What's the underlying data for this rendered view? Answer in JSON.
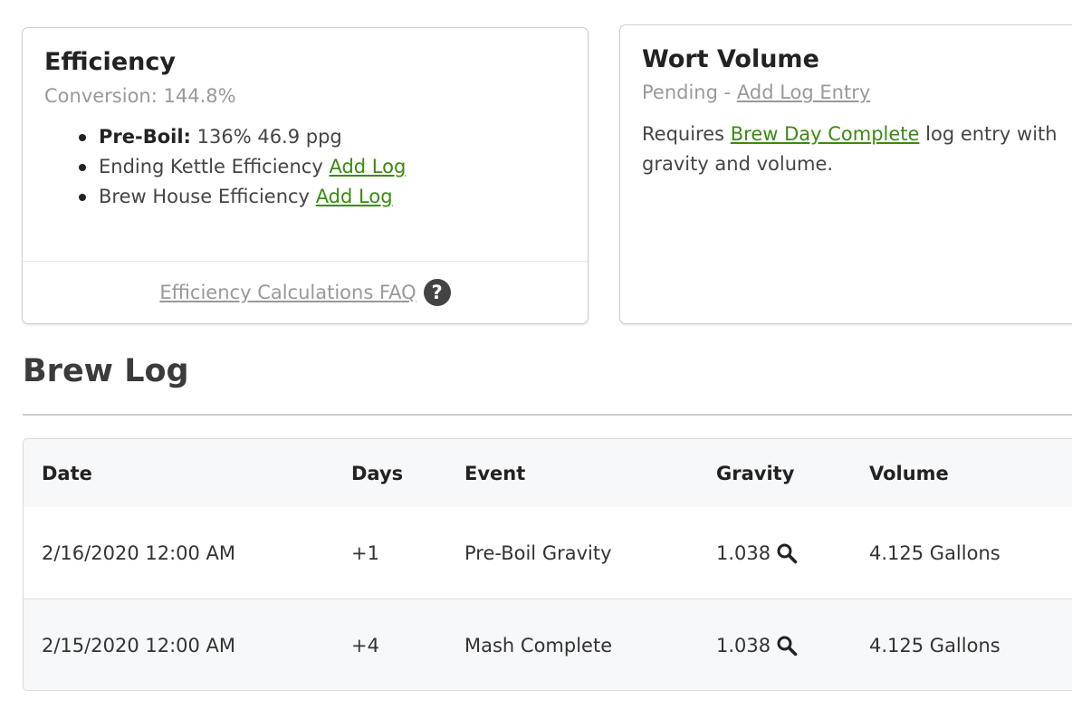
{
  "efficiency": {
    "title": "Efficiency",
    "subtitle": "Conversion: 144.8%",
    "items": [
      {
        "label": "Pre-Boil:",
        "value": "136% 46.9 ppg"
      },
      {
        "label": "Ending Kettle Efficiency",
        "link": "Add Log"
      },
      {
        "label": "Brew House Efficiency",
        "link": "Add Log"
      }
    ],
    "faq_link": "Efficiency Calculations FAQ",
    "help_icon_glyph": "?"
  },
  "wort_volume": {
    "title": "Wort Volume",
    "status": "Pending",
    "separator": " - ",
    "add_link": "Add Log Entry",
    "text_before": "Requires ",
    "text_link": "Brew Day Complete",
    "text_after": " log entry with gravity and volume."
  },
  "brew_log": {
    "title": "Brew Log",
    "columns": [
      "Date",
      "Days",
      "Event",
      "Gravity",
      "Volume"
    ],
    "rows": [
      {
        "date": "2/16/2020 12:00 AM",
        "days": "+1",
        "event": "Pre-Boil Gravity",
        "gravity": "1.038",
        "volume": "4.125 Gallons"
      },
      {
        "date": "2/15/2020 12:00 AM",
        "days": "+4",
        "event": "Mash Complete",
        "gravity": "1.038",
        "volume": "4.125 Gallons"
      }
    ]
  },
  "icons": {
    "faq": "question-circle-icon",
    "gravity_detail": "magnifier-icon"
  },
  "colors": {
    "link_green": "#3a8a12",
    "muted_text": "#999999",
    "table_background": "#f7f8fa"
  }
}
